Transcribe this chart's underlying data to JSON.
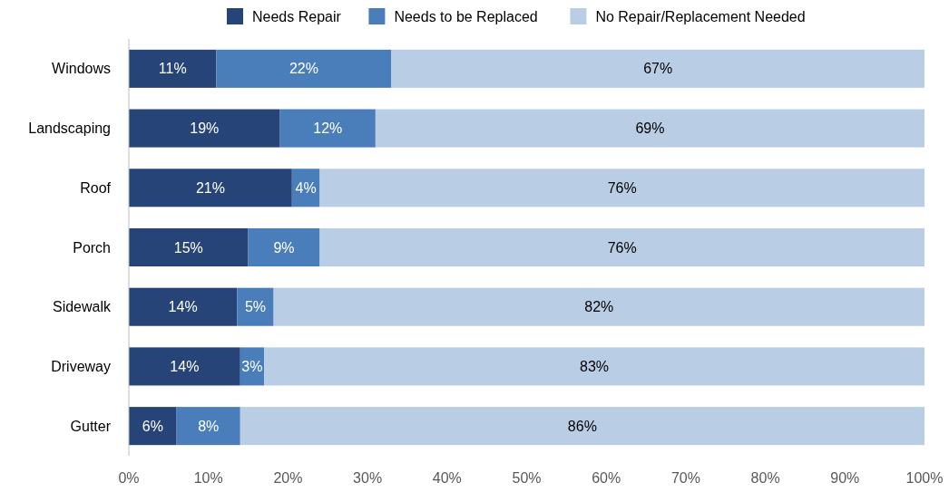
{
  "chart_data": {
    "type": "bar",
    "orientation": "horizontal",
    "stacked": true,
    "legend": "top",
    "grid": false,
    "categories": [
      "Windows",
      "Landscaping",
      "Roof",
      "Porch",
      "Sidewalk",
      "Driveway",
      "Gutter"
    ],
    "series": [
      {
        "name": "Needs Repair",
        "color": "#264478",
        "values": [
          11,
          19,
          20.5,
          15,
          13.6,
          14,
          6
        ],
        "value_labels": [
          "11%",
          "19%",
          "21%",
          "15%",
          "14%",
          "14%",
          "6%"
        ]
      },
      {
        "name": "Needs to be Replaced",
        "color": "#4a7ebb",
        "values": [
          22,
          12,
          3.5,
          9,
          4.6,
          3,
          8
        ],
        "value_labels": [
          "22%",
          "12%",
          "4%",
          "9%",
          "5%",
          "3%",
          "8%"
        ]
      },
      {
        "name": "No Repair/Replacement Needed",
        "color": "#b9cde5",
        "values": [
          67,
          69,
          76,
          76,
          81.8,
          83,
          86
        ],
        "value_labels": [
          "67%",
          "69%",
          "76%",
          "76%",
          "82%",
          "83%",
          "86%"
        ]
      }
    ],
    "xlim": [
      0,
      100
    ],
    "xticks": [
      {
        "value": 0,
        "label": "0%"
      },
      {
        "value": 10,
        "label": "10%"
      },
      {
        "value": 20,
        "label": "20%"
      },
      {
        "value": 30,
        "label": "30%"
      },
      {
        "value": 40,
        "label": "40%"
      },
      {
        "value": 50,
        "label": "50%"
      },
      {
        "value": 60,
        "label": "60%"
      },
      {
        "value": 70,
        "label": "70%"
      },
      {
        "value": 80,
        "label": "80%"
      },
      {
        "value": 90,
        "label": "90%"
      },
      {
        "value": 100,
        "label": "100%"
      }
    ]
  }
}
